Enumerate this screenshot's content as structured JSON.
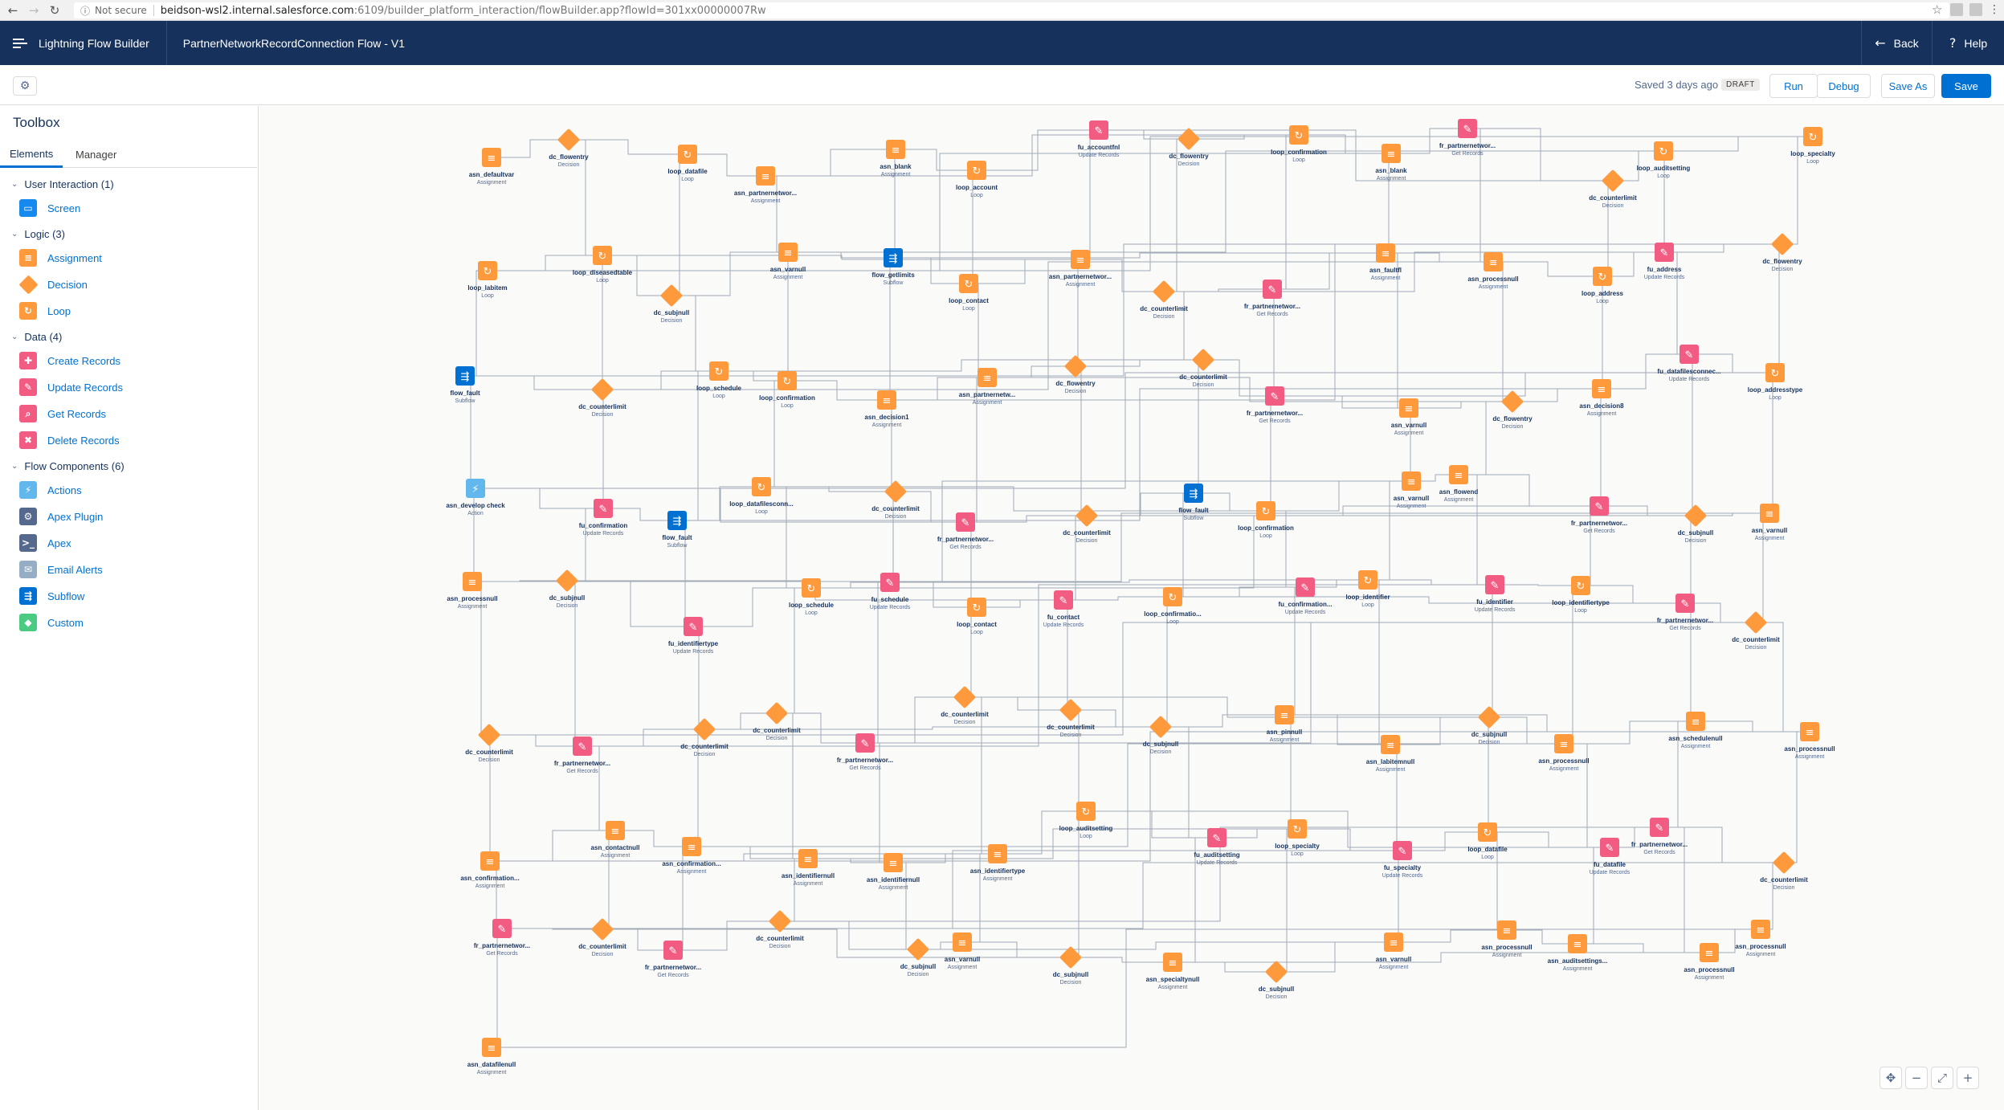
{
  "browser": {
    "url_info": "Not secure",
    "url_host": "beidson-wsl2.internal.salesforce.com",
    "url_path": ":6109/builder_platform_interaction/flowBuilder.app?flowId=301xx00000007Rw"
  },
  "header": {
    "app_title": "Lightning Flow Builder",
    "flow_title": "PartnerNetworkRecordConnection Flow - V1",
    "back_label": "Back",
    "help_label": "Help"
  },
  "toolbar": {
    "saved_status": "Saved 3 days ago",
    "draft_badge": "DRAFT",
    "run_label": "Run",
    "debug_label": "Debug",
    "save_as_label": "Save As",
    "save_label": "Save"
  },
  "sidebar": {
    "title": "Toolbox",
    "tabs": [
      {
        "label": "Elements"
      },
      {
        "label": "Manager"
      }
    ],
    "sections": [
      {
        "label": "User Interaction (1)",
        "items": [
          {
            "label": "Screen",
            "icon": "screen-icon",
            "color": "#1589ee"
          }
        ]
      },
      {
        "label": "Logic (3)",
        "items": [
          {
            "label": "Assignment",
            "icon": "assignment-icon",
            "color": "#ff9a3c"
          },
          {
            "label": "Decision",
            "icon": "decision-icon",
            "color": "#ff9a3c"
          },
          {
            "label": "Loop",
            "icon": "loop-icon",
            "color": "#ff9a3c"
          }
        ]
      },
      {
        "label": "Data (4)",
        "items": [
          {
            "label": "Create Records",
            "icon": "create-records-icon",
            "color": "#f25c83"
          },
          {
            "label": "Update Records",
            "icon": "update-records-icon",
            "color": "#f25c83"
          },
          {
            "label": "Get Records",
            "icon": "get-records-icon",
            "color": "#f25c83"
          },
          {
            "label": "Delete Records",
            "icon": "delete-records-icon",
            "color": "#f25c83"
          }
        ]
      },
      {
        "label": "Flow Components (6)",
        "items": [
          {
            "label": "Actions",
            "icon": "actions-icon",
            "color": "#62b7ed"
          },
          {
            "label": "Apex Plugin",
            "icon": "apex-plugin-icon",
            "color": "#54698d"
          },
          {
            "label": "Apex",
            "icon": "apex-icon",
            "color": "#54698d"
          },
          {
            "label": "Email Alerts",
            "icon": "email-alerts-icon",
            "color": "#95aec5"
          },
          {
            "label": "Subflow",
            "icon": "subflow-icon",
            "color": "#0070d2"
          },
          {
            "label": "Custom",
            "icon": "custom-icon",
            "color": "#4bca81"
          }
        ]
      }
    ]
  },
  "canvas": {
    "zoom_controls": [
      {
        "name": "pan-icon",
        "glyph": "✥"
      },
      {
        "name": "zoom-out-icon",
        "glyph": "−"
      },
      {
        "name": "fit-icon",
        "glyph": "⤢"
      },
      {
        "name": "zoom-in-icon",
        "glyph": "+"
      }
    ],
    "nodes": [
      {
        "type": "assign",
        "label": "asn_defaultvar",
        "sub": "Assignment"
      },
      {
        "type": "decision",
        "label": "dc_flowentry",
        "sub": "Decision"
      },
      {
        "type": "loop",
        "label": "loop_datafile",
        "sub": "Loop"
      },
      {
        "type": "assign",
        "label": "asn_partnernetwor...",
        "sub": "Assignment"
      },
      {
        "type": "assign",
        "label": "asn_blank",
        "sub": "Assignment"
      },
      {
        "type": "loop",
        "label": "loop_account",
        "sub": "Loop"
      },
      {
        "type": "data",
        "label": "fu_accountfnl",
        "sub": "Update Records"
      },
      {
        "type": "decision",
        "label": "dc_flowentry",
        "sub": "Decision"
      },
      {
        "type": "loop",
        "label": "loop_confirmation",
        "sub": "Loop"
      },
      {
        "type": "assign",
        "label": "asn_blank",
        "sub": "Assignment"
      },
      {
        "type": "data",
        "label": "fr_partnernetwor...",
        "sub": "Get Records"
      },
      {
        "type": "decision",
        "label": "dc_counterlimit",
        "sub": "Decision"
      },
      {
        "type": "loop",
        "label": "loop_auditsetting",
        "sub": "Loop"
      },
      {
        "type": "loop",
        "label": "loop_specialty",
        "sub": "Loop"
      },
      {
        "type": "loop",
        "label": "loop_labitem",
        "sub": "Loop"
      },
      {
        "type": "loop",
        "label": "loop_diseasedtable",
        "sub": "Loop"
      },
      {
        "type": "decision",
        "label": "dc_subjnull",
        "sub": "Decision"
      },
      {
        "type": "assign",
        "label": "asn_varnull",
        "sub": "Assignment"
      },
      {
        "type": "subflow",
        "label": "flow_getlimits",
        "sub": "Subflow"
      },
      {
        "type": "loop",
        "label": "loop_contact",
        "sub": "Loop"
      },
      {
        "type": "assign",
        "label": "asn_partnernetwor...",
        "sub": "Assignment"
      },
      {
        "type": "decision",
        "label": "dc_counterlimit",
        "sub": "Decision"
      },
      {
        "type": "data",
        "label": "fr_partnernetwor...",
        "sub": "Get Records"
      },
      {
        "type": "assign",
        "label": "asn_faultfl",
        "sub": "Assignment"
      },
      {
        "type": "assign",
        "label": "asn_processnull",
        "sub": "Assignment"
      },
      {
        "type": "loop",
        "label": "loop_address",
        "sub": "Loop"
      },
      {
        "type": "data",
        "label": "fu_address",
        "sub": "Update Records"
      },
      {
        "type": "decision",
        "label": "dc_flowentry",
        "sub": "Decision"
      },
      {
        "type": "subflow",
        "label": "flow_fault",
        "sub": "Subflow"
      },
      {
        "type": "decision",
        "label": "dc_counterlimit",
        "sub": "Decision"
      },
      {
        "type": "loop",
        "label": "loop_schedule",
        "sub": "Loop"
      },
      {
        "type": "loop",
        "label": "loop_confirmation",
        "sub": "Loop"
      },
      {
        "type": "assign",
        "label": "asn_decision1",
        "sub": "Assignment"
      },
      {
        "type": "assign",
        "label": "asn_partnernetw...",
        "sub": "Assignment"
      },
      {
        "type": "decision",
        "label": "dc_flowentry",
        "sub": "Decision"
      },
      {
        "type": "decision",
        "label": "dc_counterlimit",
        "sub": "Decision"
      },
      {
        "type": "data",
        "label": "fr_partnernetwor...",
        "sub": "Get Records"
      },
      {
        "type": "assign",
        "label": "asn_varnull",
        "sub": "Assignment"
      },
      {
        "type": "decision",
        "label": "dc_flowentry",
        "sub": "Decision"
      },
      {
        "type": "assign",
        "label": "asn_decision8",
        "sub": "Assignment"
      },
      {
        "type": "data",
        "label": "fu_datafilesconnec...",
        "sub": "Update Records"
      },
      {
        "type": "loop",
        "label": "loop_addresstype",
        "sub": "Loop"
      },
      {
        "type": "action",
        "label": "asn_develop check",
        "sub": "Action"
      },
      {
        "type": "data",
        "label": "fu_confirmation",
        "sub": "Update Records"
      },
      {
        "type": "subflow",
        "label": "flow_fault",
        "sub": "Subflow"
      },
      {
        "type": "loop",
        "label": "loop_datafilesconn...",
        "sub": "Loop"
      },
      {
        "type": "decision",
        "label": "dc_counterlimit",
        "sub": "Decision"
      },
      {
        "type": "data",
        "label": "fr_partnernetwor...",
        "sub": "Get Records"
      },
      {
        "type": "decision",
        "label": "dc_counterlimit",
        "sub": "Decision"
      },
      {
        "type": "subflow",
        "label": "flow_fault",
        "sub": "Subflow"
      },
      {
        "type": "loop",
        "label": "loop_confirmation",
        "sub": "Loop"
      },
      {
        "type": "assign",
        "label": "asn_varnull",
        "sub": "Assignment"
      },
      {
        "type": "assign",
        "label": "asn_flowend",
        "sub": "Assignment"
      },
      {
        "type": "data",
        "label": "fr_partnernetwor...",
        "sub": "Get Records"
      },
      {
        "type": "decision",
        "label": "dc_subjnull",
        "sub": "Decision"
      },
      {
        "type": "assign",
        "label": "asn_varnull",
        "sub": "Assignment"
      },
      {
        "type": "assign",
        "label": "asn_processnull",
        "sub": "Assignment"
      },
      {
        "type": "decision",
        "label": "dc_subjnull",
        "sub": "Decision"
      },
      {
        "type": "data",
        "label": "fu_identifiertype",
        "sub": "Update Records"
      },
      {
        "type": "loop",
        "label": "loop_schedule",
        "sub": "Loop"
      },
      {
        "type": "data",
        "label": "fu_schedule",
        "sub": "Update Records"
      },
      {
        "type": "loop",
        "label": "loop_contact",
        "sub": "Loop"
      },
      {
        "type": "data",
        "label": "fu_contact",
        "sub": "Update Records"
      },
      {
        "type": "loop",
        "label": "loop_confirmatio...",
        "sub": "Loop"
      },
      {
        "type": "data",
        "label": "fu_confirmation...",
        "sub": "Update Records"
      },
      {
        "type": "loop",
        "label": "loop_identifier",
        "sub": "Loop"
      },
      {
        "type": "data",
        "label": "fu_identifier",
        "sub": "Update Records"
      },
      {
        "type": "loop",
        "label": "loop_identifiertype",
        "sub": "Loop"
      },
      {
        "type": "data",
        "label": "fr_partnernetwor...",
        "sub": "Get Records"
      },
      {
        "type": "decision",
        "label": "dc_counterlimit",
        "sub": "Decision"
      },
      {
        "type": "decision",
        "label": "dc_counterlimit",
        "sub": "Decision"
      },
      {
        "type": "data",
        "label": "fr_partnernetwor...",
        "sub": "Get Records"
      },
      {
        "type": "decision",
        "label": "dc_counterlimit",
        "sub": "Decision"
      },
      {
        "type": "decision",
        "label": "dc_counterlimit",
        "sub": "Decision"
      },
      {
        "type": "data",
        "label": "fr_partnernetwor...",
        "sub": "Get Records"
      },
      {
        "type": "decision",
        "label": "dc_counterlimit",
        "sub": "Decision"
      },
      {
        "type": "decision",
        "label": "dc_counterlimit",
        "sub": "Decision"
      },
      {
        "type": "decision",
        "label": "dc_subjnull",
        "sub": "Decision"
      },
      {
        "type": "assign",
        "label": "asn_pinnull",
        "sub": "Assignment"
      },
      {
        "type": "assign",
        "label": "asn_labitemnull",
        "sub": "Assignment"
      },
      {
        "type": "decision",
        "label": "dc_subjnull",
        "sub": "Decision"
      },
      {
        "type": "assign",
        "label": "asn_processnull",
        "sub": "Assignment"
      },
      {
        "type": "assign",
        "label": "asn_schedulenull",
        "sub": "Assignment"
      },
      {
        "type": "assign",
        "label": "asn_processnull",
        "sub": "Assignment"
      },
      {
        "type": "assign",
        "label": "asn_confirmation...",
        "sub": "Assignment"
      },
      {
        "type": "assign",
        "label": "asn_contactnull",
        "sub": "Assignment"
      },
      {
        "type": "assign",
        "label": "asn_confirmation...",
        "sub": "Assignment"
      },
      {
        "type": "assign",
        "label": "asn_identifiernull",
        "sub": "Assignment"
      },
      {
        "type": "assign",
        "label": "asn_identifiernull",
        "sub": "Assignment"
      },
      {
        "type": "assign",
        "label": "asn_identifiertype",
        "sub": "Assignment"
      },
      {
        "type": "loop",
        "label": "loop_auditsetting",
        "sub": "Loop"
      },
      {
        "type": "data",
        "label": "fu_auditsetting",
        "sub": "Update Records"
      },
      {
        "type": "loop",
        "label": "loop_specialty",
        "sub": "Loop"
      },
      {
        "type": "data",
        "label": "fu_specialty",
        "sub": "Update Records"
      },
      {
        "type": "loop",
        "label": "loop_datafile",
        "sub": "Loop"
      },
      {
        "type": "data",
        "label": "fu_datafile",
        "sub": "Update Records"
      },
      {
        "type": "data",
        "label": "fr_partnernetwor...",
        "sub": "Get Records"
      },
      {
        "type": "decision",
        "label": "dc_counterlimit",
        "sub": "Decision"
      },
      {
        "type": "data",
        "label": "fr_partnernetwor...",
        "sub": "Get Records"
      },
      {
        "type": "decision",
        "label": "dc_counterlimit",
        "sub": "Decision"
      },
      {
        "type": "data",
        "label": "fr_partnernetwor...",
        "sub": "Get Records"
      },
      {
        "type": "decision",
        "label": "dc_counterlimit",
        "sub": "Decision"
      },
      {
        "type": "decision",
        "label": "dc_subjnull",
        "sub": "Decision"
      },
      {
        "type": "assign",
        "label": "asn_varnull",
        "sub": "Assignment"
      },
      {
        "type": "decision",
        "label": "dc_subjnull",
        "sub": "Decision"
      },
      {
        "type": "assign",
        "label": "asn_specialtynull",
        "sub": "Assignment"
      },
      {
        "type": "decision",
        "label": "dc_subjnull",
        "sub": "Decision"
      },
      {
        "type": "assign",
        "label": "asn_varnull",
        "sub": "Assignment"
      },
      {
        "type": "assign",
        "label": "asn_processnull",
        "sub": "Assignment"
      },
      {
        "type": "assign",
        "label": "asn_auditsettings...",
        "sub": "Assignment"
      },
      {
        "type": "assign",
        "label": "asn_processnull",
        "sub": "Assignment"
      },
      {
        "type": "assign",
        "label": "asn_processnull",
        "sub": "Assignment"
      },
      {
        "type": "assign",
        "label": "asn_datafilenull",
        "sub": "Assignment"
      }
    ]
  }
}
